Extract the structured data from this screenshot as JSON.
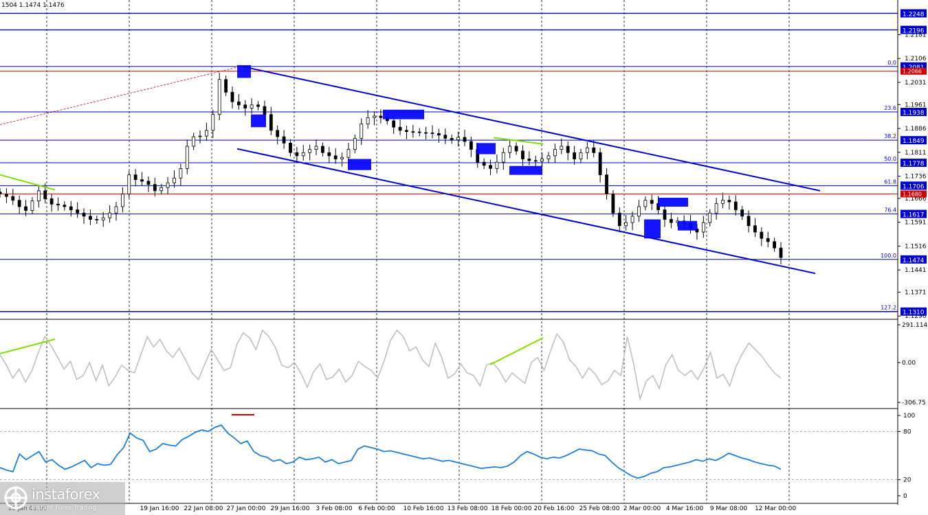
{
  "header": {
    "quote": "1504 1.1474 1.1476"
  },
  "brand": {
    "name": "instaforex",
    "tagline": "Instant Forex Trading"
  },
  "colors": {
    "candle": "#000000",
    "level_line": "#0000cc",
    "red_level": "#cc0000",
    "channel": "#0000cc",
    "box": "#0000ff",
    "divergence": "#7fe000",
    "cci": "#c0c0c0",
    "rsi": "#1e7fdc",
    "label_bg": "#0000cc"
  },
  "chart_data": [
    {
      "type": "candlestick",
      "title": "",
      "price_axis": {
        "min": 1.129,
        "max": 1.229
      },
      "x_ticks": [
        "16 Jan 08:00",
        "19 Jan 16:00",
        "22 Jan 08:00",
        "27 Jan 00:00",
        "29 Jan 16:00",
        "3 Feb 08:00",
        "6 Feb 00:00",
        "10 Feb 16:00",
        "13 Feb 08:00",
        "18 Feb 00:00",
        "20 Feb 16:00",
        "25 Feb 08:00",
        "2 Mar 00:00",
        "4 Mar 16:00",
        "9 Mar 08:00",
        "12 Mar 00:00"
      ],
      "y_ticks": [
        "1.2181",
        "1.2106",
        "1.2031",
        "1.1961",
        "1.1886",
        "1.1811",
        "1.1736",
        "1.1666",
        "1.1591",
        "1.1516",
        "1.1441",
        "1.1371",
        "1.1296"
      ],
      "price_levels": [
        {
          "price": 1.2248,
          "label": "1.2248",
          "fib": ""
        },
        {
          "price": 1.2196,
          "label": "1.2196",
          "fib": ""
        },
        {
          "price": 1.2081,
          "label": "1.2081",
          "fib": "0.0"
        },
        {
          "price": 1.1938,
          "label": "1.1938",
          "fib": "23.6"
        },
        {
          "price": 1.1849,
          "label": "1.1849",
          "fib": "38.2"
        },
        {
          "price": 1.1778,
          "label": "1.1778",
          "fib": "50.0"
        },
        {
          "price": 1.1706,
          "label": "1.1706",
          "fib": "61.8"
        },
        {
          "price": 1.1617,
          "label": "1.1617",
          "fib": "76.4"
        },
        {
          "price": 1.1474,
          "label": "1.1474",
          "fib": "100.0"
        },
        {
          "price": 1.131,
          "label": "1.1310",
          "fib": "127.2"
        }
      ],
      "red_levels": [
        {
          "price": 1.2066,
          "label": "1.2066"
        },
        {
          "price": 1.168,
          "label": "1.1680"
        }
      ],
      "channel": {
        "upper": [
          {
            "x": "27 Jan 00:00",
            "price": 1.2081
          },
          {
            "x": "12 Mar 16:00",
            "price": 1.169
          }
        ],
        "lower": [
          {
            "x": "26 Jan 12:00",
            "price": 1.182
          },
          {
            "x": "12 Mar 16:00",
            "price": 1.143
          }
        ]
      },
      "close_path": [
        1.168,
        1.1672,
        1.166,
        1.164,
        1.1628,
        1.1658,
        1.169,
        1.1665,
        1.1648,
        1.1645,
        1.164,
        1.163,
        1.162,
        1.161,
        1.16,
        1.1598,
        1.1605,
        1.162,
        1.164,
        1.168,
        1.174,
        1.1725,
        1.172,
        1.171,
        1.169,
        1.17,
        1.1715,
        1.173,
        1.176,
        1.183,
        1.186,
        1.1862,
        1.188,
        1.193,
        1.204,
        1.2,
        1.197,
        1.196,
        1.195,
        1.196,
        1.1955,
        1.193,
        1.188,
        1.186,
        1.184,
        1.181,
        1.18,
        1.181,
        1.182,
        1.183,
        1.181,
        1.18,
        1.179,
        1.1795,
        1.182,
        1.1855,
        1.19,
        1.192,
        1.1925,
        1.192,
        1.191,
        1.189,
        1.188,
        1.1876,
        1.1875,
        1.1873,
        1.1872,
        1.187,
        1.1865,
        1.1855,
        1.185,
        1.1858,
        1.1845,
        1.182,
        1.178,
        1.177,
        1.176,
        1.178,
        1.181,
        1.183,
        1.1815,
        1.179,
        1.1785,
        1.1783,
        1.179,
        1.18,
        1.182,
        1.183,
        1.181,
        1.179,
        1.181,
        1.1825,
        1.181,
        1.174,
        1.168,
        1.162,
        1.158,
        1.159,
        1.161,
        1.164,
        1.166,
        1.165,
        1.163,
        1.16,
        1.159,
        1.1595,
        1.159,
        1.157,
        1.156,
        1.159,
        1.162,
        1.165,
        1.166,
        1.1655,
        1.163,
        1.161,
        1.158,
        1.156,
        1.154,
        1.153,
        1.151,
        1.148
      ],
      "boxes": [
        {
          "x": "27 Jan 00:00",
          "price_high": 1.2085,
          "price_low": 1.2045
        },
        {
          "x": "28 Jan 00:00",
          "price_high": 1.193,
          "price_low": 1.189
        },
        {
          "x": "5 Feb 08:00",
          "price_high": 1.179,
          "price_low": 1.1755
        },
        {
          "x": "9 Feb 00:00",
          "price_high": 1.1945,
          "price_low": 1.1915
        },
        {
          "x": "17 Feb 08:00",
          "price_high": 1.184,
          "price_low": 1.1805
        },
        {
          "x": "19 Feb 00:00",
          "price_high": 1.1768,
          "price_low": 1.174
        },
        {
          "x": "2 Mar 16:00",
          "price_high": 1.16,
          "price_low": 1.154
        },
        {
          "x": "3 Mar 08:00",
          "price_high": 1.1668,
          "price_low": 1.164
        },
        {
          "x": "4 Mar 08:00",
          "price_high": 1.1595,
          "price_low": 1.1565
        }
      ]
    },
    {
      "type": "line",
      "title": "",
      "y_ticks": [
        "291.1145",
        "0.00",
        "-306.75"
      ],
      "ylim": [
        -306.75,
        291.1145
      ],
      "series": [
        {
          "values": [
            60,
            -20,
            -120,
            -50,
            -150,
            -60,
            80,
            200,
            130,
            40,
            -50,
            10,
            -130,
            -100,
            0,
            -140,
            -20,
            -180,
            -110,
            -20,
            -60,
            -80,
            60,
            200,
            120,
            180,
            90,
            40,
            110,
            20,
            -80,
            -130,
            -10,
            100,
            20,
            -60,
            -40,
            140,
            230,
            190,
            100,
            250,
            200,
            120,
            -20,
            -40,
            0,
            -80,
            -190,
            -70,
            -10,
            -130,
            -110,
            -50,
            -150,
            -100,
            10,
            -30,
            -60,
            -120,
            10,
            170,
            250,
            200,
            90,
            120,
            20,
            -30,
            150,
            40,
            -120,
            -90,
            -10,
            -80,
            -100,
            -180,
            -20,
            0,
            -60,
            -150,
            -80,
            -120,
            -160,
            0,
            40,
            -60,
            90,
            220,
            160,
            20,
            -30,
            -120,
            -40,
            -90,
            -170,
            -140,
            -60,
            -100,
            200,
            -10,
            -280,
            -140,
            -100,
            -200,
            -20,
            60,
            -60,
            -100,
            -60,
            -130,
            -40,
            80,
            -120,
            -90,
            -180,
            -30,
            70,
            150,
            100,
            50,
            -20,
            -80,
            -120
          ]
        }
      ],
      "divergence_lines": [
        {
          "from": {
            "x": "15 Jan 00:00",
            "value": 80
          },
          "to": {
            "x": "16 Jan 08:00",
            "value": 180
          }
        },
        {
          "from": {
            "x": "17 Feb 00:00",
            "value": -10
          },
          "to": {
            "x": "20 Feb 08:00",
            "value": 180
          }
        }
      ]
    },
    {
      "type": "line",
      "title": "",
      "y_ticks": [
        "100",
        "80",
        "20",
        "0"
      ],
      "ylim": [
        0,
        100
      ],
      "series": [
        {
          "values": [
            35,
            32,
            30,
            52,
            45,
            50,
            55,
            42,
            45,
            38,
            33,
            36,
            40,
            44,
            35,
            40,
            38,
            39,
            51,
            60,
            78,
            72,
            69,
            55,
            58,
            65,
            63,
            62,
            70,
            74,
            79,
            82,
            80,
            85,
            88,
            78,
            72,
            65,
            68,
            55,
            50,
            48,
            43,
            45,
            40,
            42,
            48,
            45,
            46,
            48,
            42,
            45,
            40,
            42,
            44,
            58,
            62,
            60,
            58,
            55,
            56,
            54,
            52,
            50,
            48,
            46,
            47,
            45,
            43,
            44,
            42,
            40,
            38,
            36,
            34,
            35,
            36,
            35,
            37,
            42,
            50,
            55,
            52,
            48,
            46,
            48,
            47,
            50,
            54,
            58,
            57,
            56,
            52,
            50,
            42,
            35,
            30,
            25,
            22,
            24,
            28,
            30,
            35,
            36,
            38,
            40,
            42,
            45,
            43,
            46,
            44,
            48,
            53,
            50,
            47,
            45,
            42,
            40,
            38,
            37,
            33
          ]
        }
      ],
      "levels": [
        80,
        20
      ]
    }
  ]
}
